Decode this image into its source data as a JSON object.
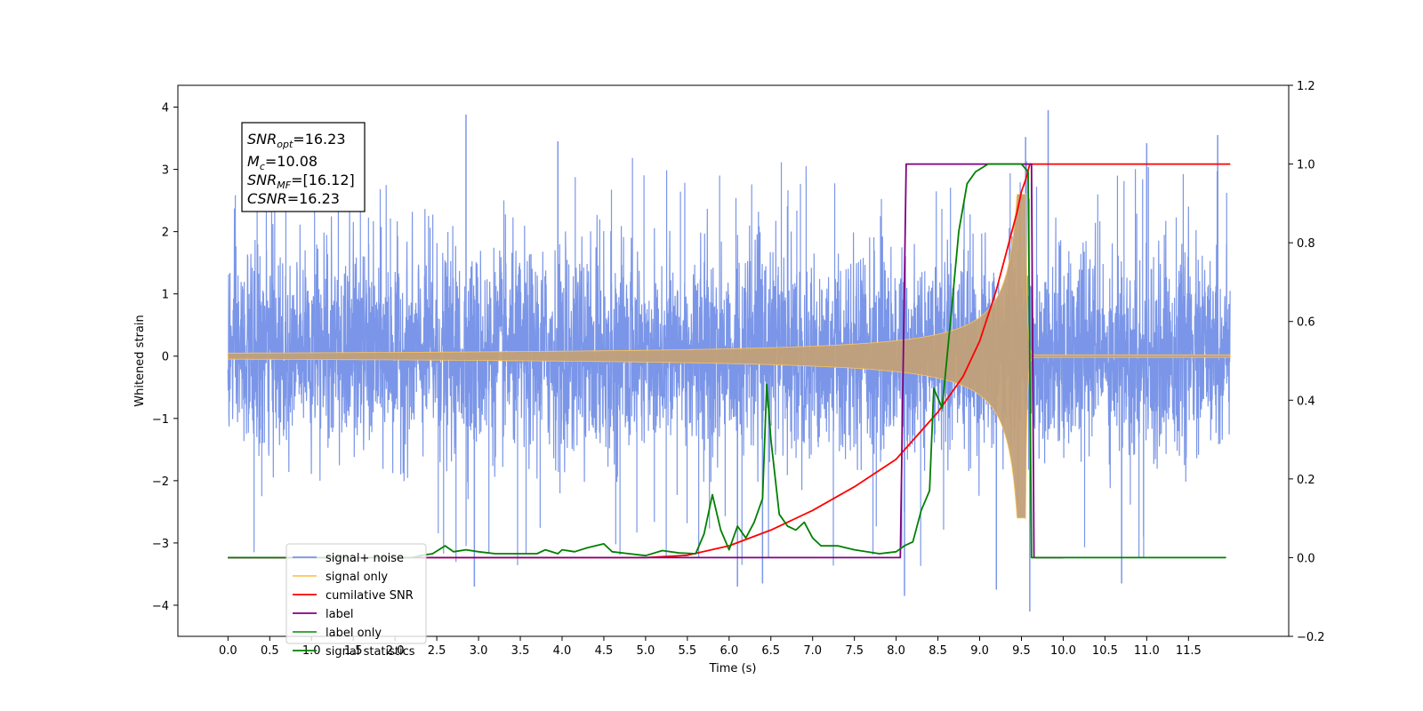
{
  "chart_data": {
    "type": "line",
    "xlabel": "Time (s)",
    "ylabel_left": "Whitened strain",
    "ylabel_right": "",
    "x_range": [
      -0.6,
      12.7
    ],
    "y_left_range": [
      -4.5,
      4.35
    ],
    "y_right_range": [
      -0.2,
      1.2
    ],
    "x_ticks": [
      "0.0",
      "0.5",
      "1.0",
      "1.5",
      "2.0",
      "2.5",
      "3.0",
      "3.5",
      "4.0",
      "4.5",
      "5.0",
      "5.5",
      "6.0",
      "6.5",
      "7.0",
      "7.5",
      "8.0",
      "8.5",
      "9.0",
      "9.5",
      "10.0",
      "10.5",
      "11.0",
      "11.5"
    ],
    "y_left_ticks": [
      "4",
      "3",
      "2",
      "1",
      "0",
      "−1",
      "−2",
      "−3",
      "−4"
    ],
    "y_right_ticks": [
      "1.2",
      "1.0",
      "0.8",
      "0.6",
      "0.4",
      "0.2",
      "0.0",
      "−0.2"
    ],
    "legend_position": "lower-left",
    "grid": false,
    "annotation": {
      "lines": [
        {
          "base": "SNR",
          "sub": "opt",
          "value": "=16.23"
        },
        {
          "base": "M",
          "sub": "c",
          "value": "=10.08"
        },
        {
          "base": "SNR",
          "sub": "MF",
          "value": "=[16.12]"
        },
        {
          "base": "CSNR",
          "sub": "",
          "value": "=16.23"
        }
      ]
    },
    "series": [
      {
        "name": "signal+ noise",
        "color": "#7b96e8",
        "axis": "left",
        "kind": "noise",
        "x_range": [
          0.0,
          12.0
        ],
        "typical_range": [
          -1.9,
          2.3
        ],
        "peak_values": [
          {
            "x": 2.85,
            "y": 3.88
          },
          {
            "x": 9.82,
            "y": 3.95
          },
          {
            "x": 9.55,
            "y": 3.52
          },
          {
            "x": 3.95,
            "y": 3.45
          },
          {
            "x": 11.85,
            "y": 3.55
          },
          {
            "x": 11.0,
            "y": 3.42
          },
          {
            "x": 9.6,
            "y": -4.1
          },
          {
            "x": 8.1,
            "y": -3.85
          },
          {
            "x": 9.2,
            "y": -3.75
          },
          {
            "x": 2.95,
            "y": -3.7
          },
          {
            "x": 6.1,
            "y": -3.7
          },
          {
            "x": 6.4,
            "y": -3.65
          },
          {
            "x": 10.7,
            "y": -3.65
          }
        ]
      },
      {
        "name": "signal only",
        "color": "#ffc456",
        "axis": "left",
        "kind": "chirp",
        "start_x": 0.0,
        "merger_x": 9.55,
        "end_x": 12.0,
        "peak_amplitude": 2.6,
        "amplitude_at_8": 0.22
      },
      {
        "name": "cumilative SNR",
        "color": "#ff0000",
        "axis": "right",
        "points": [
          [
            0.0,
            0.0
          ],
          [
            5.0,
            0.0
          ],
          [
            5.5,
            0.006
          ],
          [
            6.0,
            0.03
          ],
          [
            6.5,
            0.07
          ],
          [
            7.0,
            0.12
          ],
          [
            7.5,
            0.18
          ],
          [
            8.0,
            0.25
          ],
          [
            8.5,
            0.37
          ],
          [
            8.8,
            0.46
          ],
          [
            9.0,
            0.55
          ],
          [
            9.2,
            0.68
          ],
          [
            9.35,
            0.8
          ],
          [
            9.45,
            0.88
          ],
          [
            9.5,
            0.93
          ],
          [
            9.55,
            0.96
          ],
          [
            9.6,
            1.0
          ],
          [
            12.0,
            1.0
          ]
        ]
      },
      {
        "name": "label",
        "color": "#800080",
        "axis": "right",
        "points": [
          [
            0.0,
            0.0
          ],
          [
            8.05,
            0.0
          ],
          [
            8.12,
            1.0
          ],
          [
            9.62,
            1.0
          ],
          [
            9.65,
            0.0
          ],
          [
            10.0,
            0.0
          ]
        ]
      },
      {
        "name": "label only",
        "color": "#1f9e1f",
        "axis": "right",
        "legend_only": true,
        "points": []
      },
      {
        "name": "signal statistics",
        "color": "#008000",
        "axis": "right",
        "points": [
          [
            0.0,
            0.0
          ],
          [
            2.2,
            0.0
          ],
          [
            2.3,
            0.005
          ],
          [
            2.45,
            0.01
          ],
          [
            2.6,
            0.03
          ],
          [
            2.7,
            0.015
          ],
          [
            2.85,
            0.02
          ],
          [
            3.0,
            0.015
          ],
          [
            3.2,
            0.01
          ],
          [
            3.5,
            0.01
          ],
          [
            3.7,
            0.01
          ],
          [
            3.8,
            0.02
          ],
          [
            3.95,
            0.01
          ],
          [
            4.0,
            0.02
          ],
          [
            4.15,
            0.015
          ],
          [
            4.3,
            0.025
          ],
          [
            4.5,
            0.035
          ],
          [
            4.6,
            0.015
          ],
          [
            4.8,
            0.01
          ],
          [
            5.0,
            0.005
          ],
          [
            5.2,
            0.018
          ],
          [
            5.4,
            0.012
          ],
          [
            5.6,
            0.01
          ],
          [
            5.7,
            0.06
          ],
          [
            5.8,
            0.16
          ],
          [
            5.9,
            0.07
          ],
          [
            6.0,
            0.02
          ],
          [
            6.1,
            0.08
          ],
          [
            6.2,
            0.05
          ],
          [
            6.3,
            0.09
          ],
          [
            6.4,
            0.15
          ],
          [
            6.45,
            0.44
          ],
          [
            6.5,
            0.3
          ],
          [
            6.6,
            0.11
          ],
          [
            6.7,
            0.08
          ],
          [
            6.8,
            0.07
          ],
          [
            6.9,
            0.09
          ],
          [
            7.0,
            0.05
          ],
          [
            7.1,
            0.03
          ],
          [
            7.3,
            0.03
          ],
          [
            7.5,
            0.02
          ],
          [
            7.8,
            0.01
          ],
          [
            8.0,
            0.015
          ],
          [
            8.1,
            0.03
          ],
          [
            8.2,
            0.04
          ],
          [
            8.3,
            0.12
          ],
          [
            8.4,
            0.17
          ],
          [
            8.45,
            0.43
          ],
          [
            8.55,
            0.38
          ],
          [
            8.65,
            0.6
          ],
          [
            8.75,
            0.83
          ],
          [
            8.85,
            0.95
          ],
          [
            8.95,
            0.98
          ],
          [
            9.1,
            1.0
          ],
          [
            9.5,
            1.0
          ],
          [
            9.58,
            0.98
          ],
          [
            9.62,
            0.0
          ],
          [
            11.95,
            0.0
          ]
        ]
      }
    ]
  }
}
